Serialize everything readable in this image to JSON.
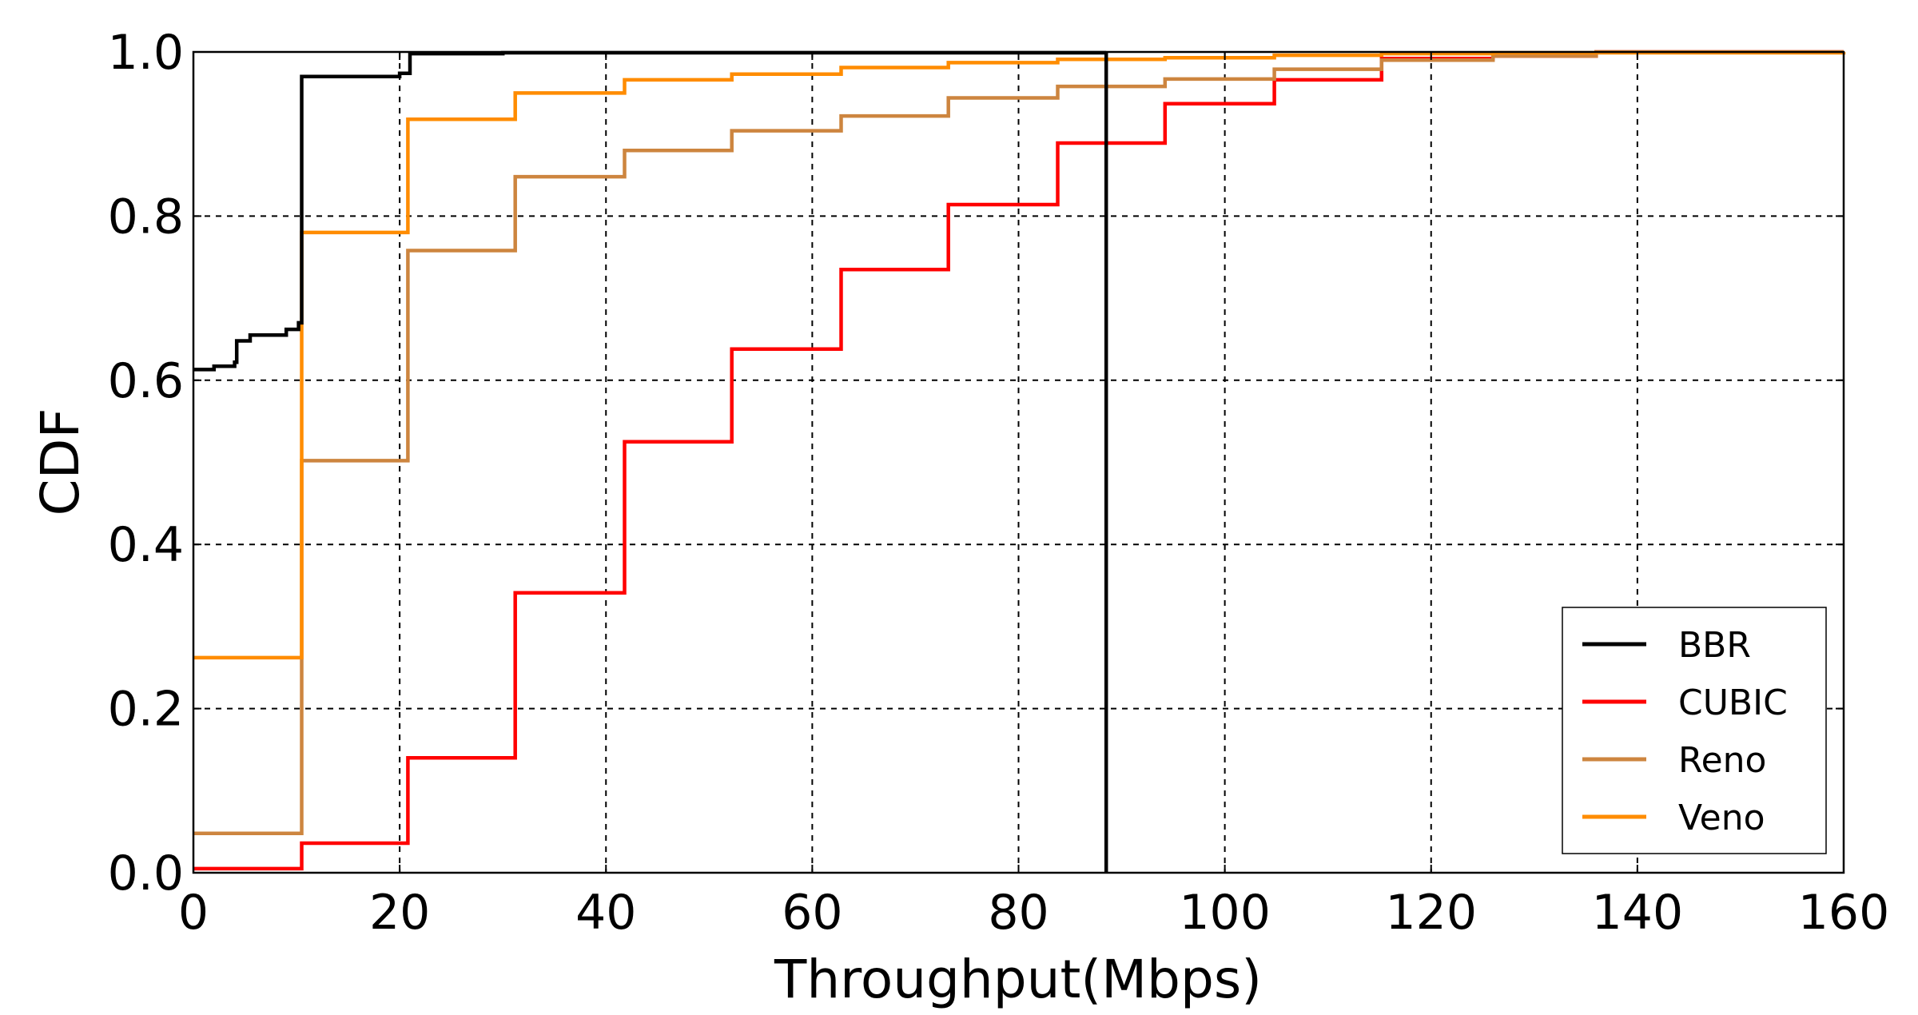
{
  "chart_data": {
    "type": "line",
    "step": true,
    "xlabel": "Throughput(Mbps)",
    "ylabel": "CDF",
    "xlim": [
      0,
      160
    ],
    "ylim": [
      0.0,
      1.0
    ],
    "xticks": [
      0,
      20,
      40,
      60,
      80,
      100,
      120,
      140,
      160
    ],
    "xtick_labels": [
      "0",
      "20",
      "40",
      "60",
      "80",
      "100",
      "120",
      "140",
      "160"
    ],
    "yticks": [
      0.0,
      0.2,
      0.4,
      0.6,
      0.8,
      1.0
    ],
    "ytick_labels": [
      "0.0",
      "0.2",
      "0.4",
      "0.6",
      "0.8",
      "1.0"
    ],
    "grid": true,
    "legend_position": "lower right",
    "series": [
      {
        "name": "BBR",
        "color": "#000000",
        "points": [
          [
            0,
            0.613
          ],
          [
            2,
            0.617
          ],
          [
            4,
            0.622
          ],
          [
            4.2,
            0.648
          ],
          [
            5.5,
            0.655
          ],
          [
            9,
            0.662
          ],
          [
            10.2,
            0.67
          ],
          [
            10.5,
            0.97
          ],
          [
            20,
            0.974
          ],
          [
            21,
            0.998
          ],
          [
            30,
            0.999
          ],
          [
            88.5,
            1.0
          ],
          [
            88.5,
            0.0
          ]
        ]
      },
      {
        "name": "CUBIC",
        "color": "#ff0000",
        "points": [
          [
            0,
            0.005
          ],
          [
            10.5,
            0.008
          ],
          [
            10.5,
            0.036
          ],
          [
            20.8,
            0.041
          ],
          [
            20.8,
            0.14
          ],
          [
            31.2,
            0.145
          ],
          [
            31.2,
            0.341
          ],
          [
            41.8,
            0.342
          ],
          [
            41.8,
            0.525
          ],
          [
            52.2,
            0.527
          ],
          [
            52.2,
            0.638
          ],
          [
            62.8,
            0.64
          ],
          [
            62.8,
            0.735
          ],
          [
            73.2,
            0.736
          ],
          [
            73.2,
            0.814
          ],
          [
            83.8,
            0.815
          ],
          [
            83.8,
            0.889
          ],
          [
            94.2,
            0.891
          ],
          [
            94.2,
            0.937
          ],
          [
            104.8,
            0.939
          ],
          [
            104.8,
            0.966
          ],
          [
            115.2,
            0.969
          ],
          [
            115.2,
            0.992
          ],
          [
            126,
            0.995
          ],
          [
            136,
            1.0
          ],
          [
            160,
            1.0
          ]
        ]
      },
      {
        "name": "Reno",
        "color": "#cd853f",
        "points": [
          [
            0,
            0.048
          ],
          [
            10.5,
            0.049
          ],
          [
            10.5,
            0.502
          ],
          [
            20.8,
            0.503
          ],
          [
            20.8,
            0.758
          ],
          [
            31.2,
            0.76
          ],
          [
            31.2,
            0.848
          ],
          [
            41.8,
            0.85
          ],
          [
            41.8,
            0.88
          ],
          [
            52.2,
            0.882
          ],
          [
            52.2,
            0.904
          ],
          [
            62.8,
            0.905
          ],
          [
            62.8,
            0.922
          ],
          [
            73.2,
            0.924
          ],
          [
            73.2,
            0.944
          ],
          [
            83.8,
            0.946
          ],
          [
            83.8,
            0.958
          ],
          [
            94.2,
            0.96
          ],
          [
            94.2,
            0.967
          ],
          [
            104.8,
            0.968
          ],
          [
            104.8,
            0.979
          ],
          [
            115.2,
            0.982
          ],
          [
            115.2,
            0.99
          ],
          [
            126,
            0.995
          ],
          [
            136,
            1.0
          ],
          [
            160,
            1.0
          ]
        ]
      },
      {
        "name": "Veno",
        "color": "#ff8c00",
        "points": [
          [
            0,
            0.262
          ],
          [
            10.5,
            0.263
          ],
          [
            10.5,
            0.78
          ],
          [
            20.8,
            0.783
          ],
          [
            20.8,
            0.918
          ],
          [
            31.2,
            0.92
          ],
          [
            31.2,
            0.95
          ],
          [
            41.8,
            0.953
          ],
          [
            41.8,
            0.966
          ],
          [
            52.2,
            0.968
          ],
          [
            52.2,
            0.973
          ],
          [
            62.8,
            0.976
          ],
          [
            62.8,
            0.981
          ],
          [
            73.2,
            0.983
          ],
          [
            73.2,
            0.987
          ],
          [
            83.8,
            0.989
          ],
          [
            83.8,
            0.991
          ],
          [
            94.2,
            0.993
          ],
          [
            104.8,
            0.996
          ],
          [
            115.2,
            0.998
          ],
          [
            126,
            0.999
          ],
          [
            160,
            1.0
          ]
        ]
      }
    ]
  }
}
